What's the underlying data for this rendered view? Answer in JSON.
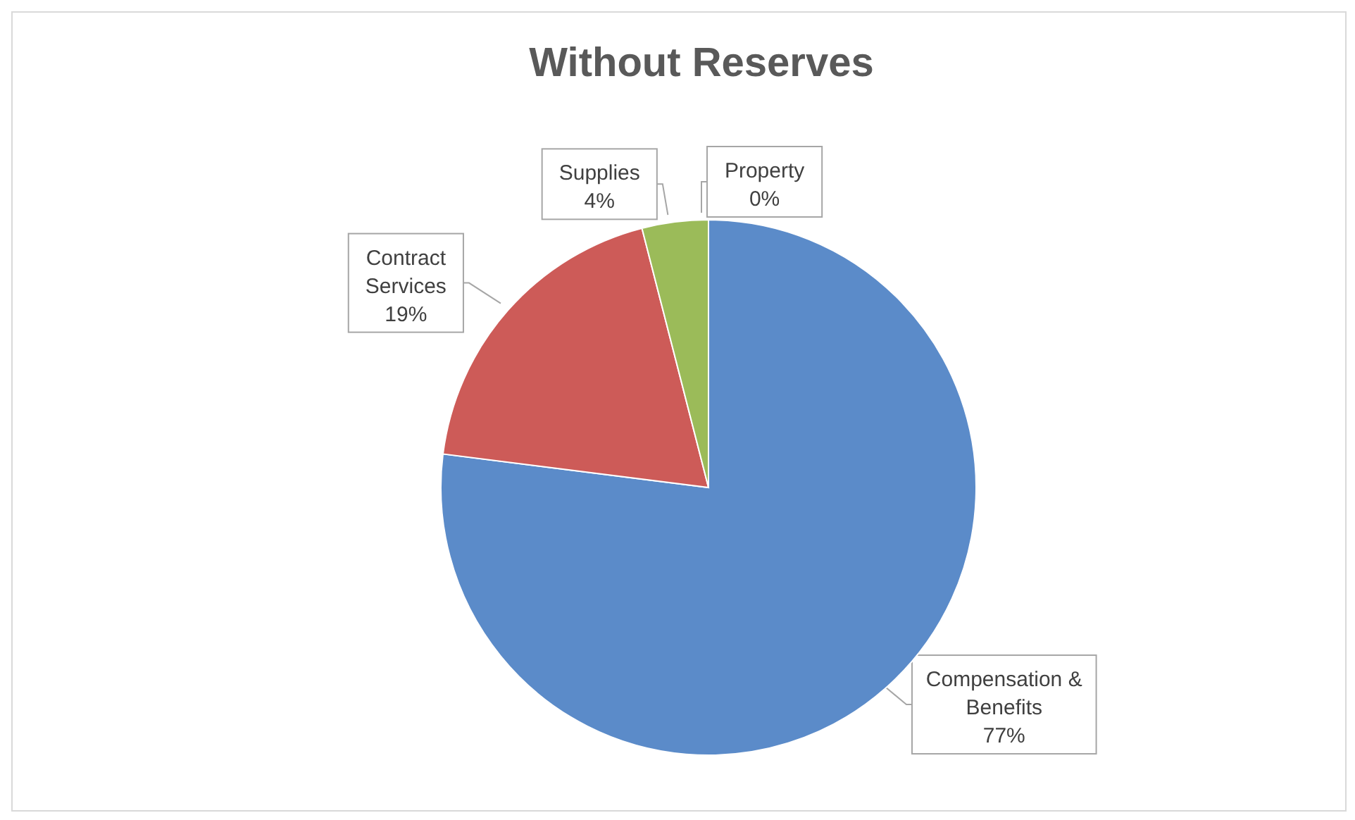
{
  "chart_data": {
    "type": "pie",
    "title": "Without Reserves",
    "categories": [
      "Compensation & Benefits",
      "Contract Services",
      "Supplies",
      "Property"
    ],
    "values": [
      77,
      19,
      4,
      0
    ],
    "colors": [
      "#5b8bc9",
      "#cd5b58",
      "#9bbb59",
      "#8064a2"
    ],
    "value_labels": [
      "77%",
      "19%",
      "4%",
      "0%"
    ],
    "legend": false
  }
}
